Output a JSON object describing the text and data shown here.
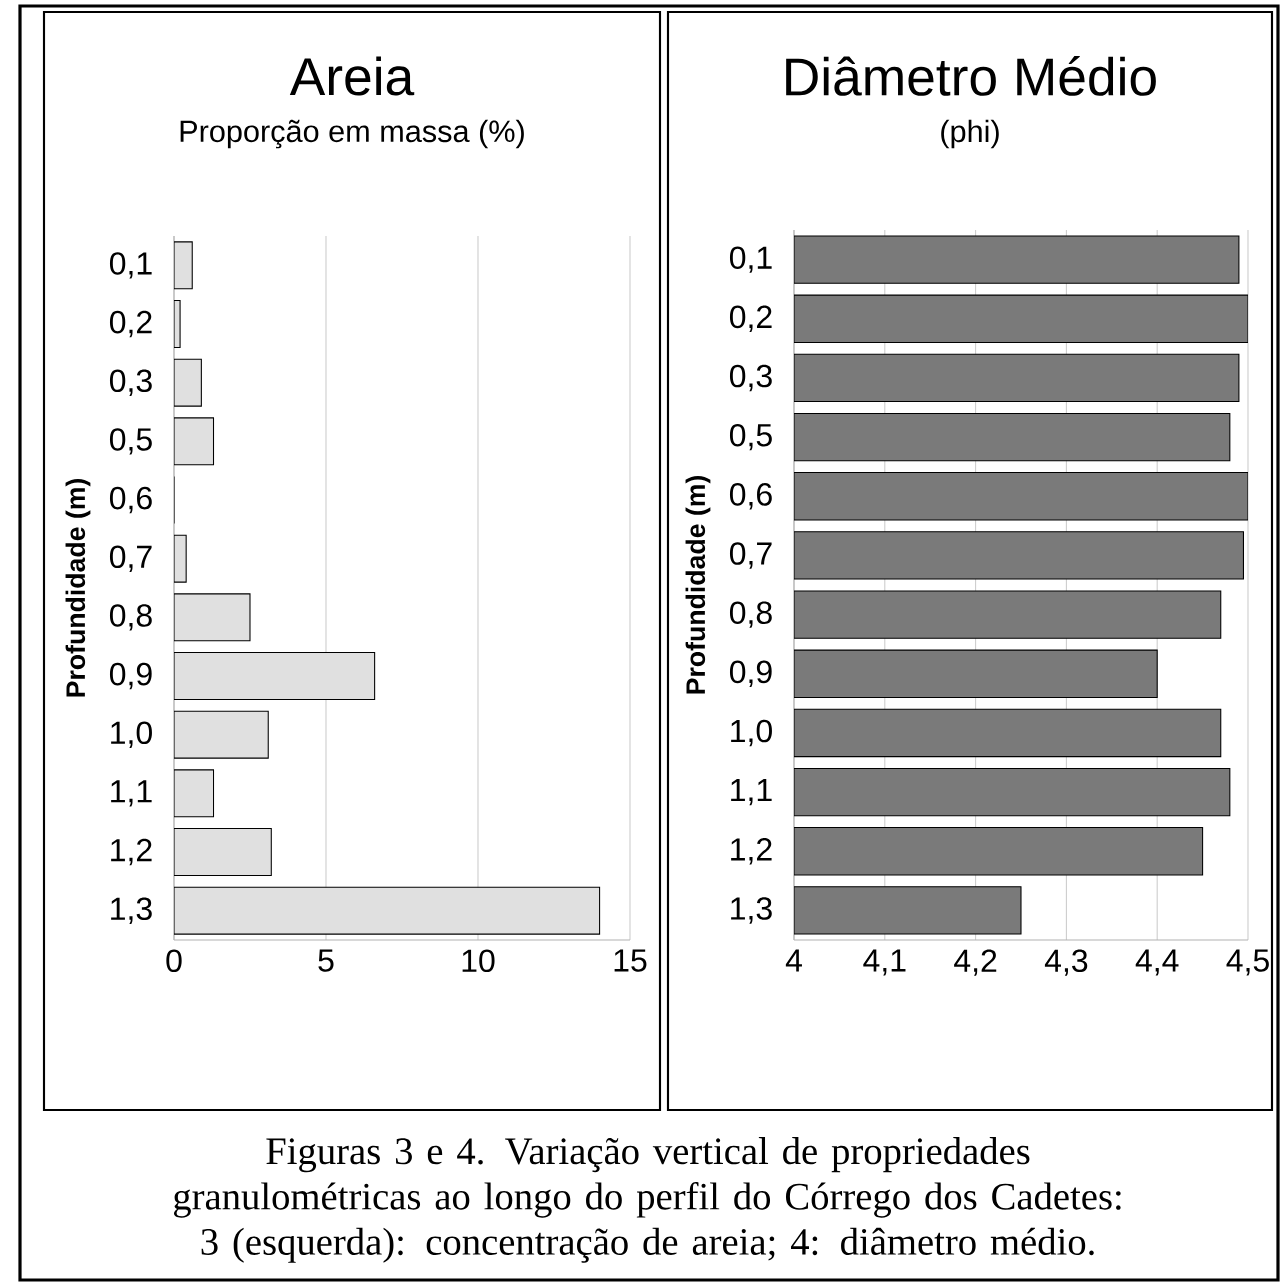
{
  "chart_data": [
    {
      "type": "bar",
      "orientation": "horizontal",
      "title": "Areia",
      "subtitle": "Proporção em massa (%)",
      "ylabel": "Profundidade (m)",
      "categories": [
        "0,1",
        "0,2",
        "0,3",
        "0,5",
        "0,6",
        "0,7",
        "0,8",
        "0,9",
        "1,0",
        "1,1",
        "1,2",
        "1,3"
      ],
      "values": [
        0.6,
        0.2,
        0.9,
        1.3,
        0,
        0.4,
        2.5,
        6.6,
        3.1,
        1.3,
        3.2,
        14.0
      ],
      "color": "#e0e0e0",
      "xlim": [
        0,
        15
      ],
      "xticks": [
        0,
        5,
        10,
        15
      ],
      "grid": "x",
      "annotations": [
        "Figuras 3 e 4. Variação vertical de propriedades granulométricas ao longo do perfil do Córrego dos Cadetes: 3 (esquerda): concentração de areia; 4: diâmetro médio."
      ]
    },
    {
      "type": "bar",
      "orientation": "horizontal",
      "title": "Diâmetro Médio",
      "subtitle": "(phi)",
      "ylabel": "Profundidade (m)",
      "categories": [
        "0,1",
        "0,2",
        "0,3",
        "0,5",
        "0,6",
        "0,7",
        "0,8",
        "0,9",
        "1,0",
        "1,1",
        "1,2",
        "1,3"
      ],
      "values": [
        4.49,
        4.5,
        4.49,
        4.48,
        4.5,
        4.495,
        4.47,
        4.4,
        4.47,
        4.48,
        4.45,
        4.25
      ],
      "color": "#7a7a7a",
      "xlim": [
        4,
        4.5
      ],
      "xticks": [
        {
          "value": 4,
          "label": "4"
        },
        {
          "value": 4.1,
          "label": "4,1"
        },
        {
          "value": 4.2,
          "label": "4,2"
        },
        {
          "value": 4.3,
          "label": "4,3"
        },
        {
          "value": 4.4,
          "label": "4,4"
        },
        {
          "value": 4.5,
          "label": "4,5"
        }
      ],
      "grid": "x"
    }
  ]
}
